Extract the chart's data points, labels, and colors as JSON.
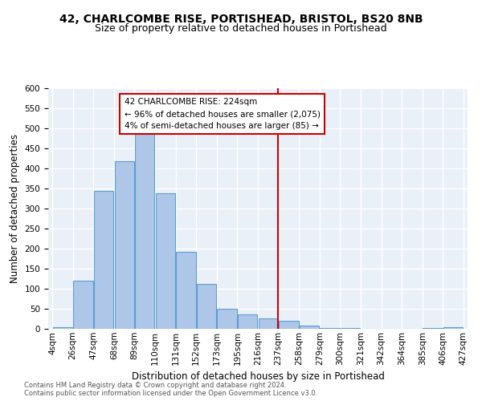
{
  "title1": "42, CHARLCOMBE RISE, PORTISHEAD, BRISTOL, BS20 8NB",
  "title2": "Size of property relative to detached houses in Portishead",
  "xlabel": "Distribution of detached houses by size in Portishead",
  "ylabel": "Number of detached properties",
  "bar_labels": [
    "4sqm",
    "26sqm",
    "47sqm",
    "68sqm",
    "89sqm",
    "110sqm",
    "131sqm",
    "152sqm",
    "173sqm",
    "195sqm",
    "216sqm",
    "237sqm",
    "258sqm",
    "279sqm",
    "300sqm",
    "321sqm",
    "342sqm",
    "364sqm",
    "385sqm",
    "406sqm",
    "427sqm"
  ],
  "bar_heights": [
    5,
    120,
    345,
    418,
    487,
    338,
    193,
    112,
    50,
    36,
    26,
    20,
    8,
    3,
    2,
    1,
    1,
    1,
    2,
    4
  ],
  "bar_color": "#aec6e8",
  "bar_edge_color": "#5a9fd4",
  "vline_color": "#cc0000",
  "annotation_line1": "42 CHARLCOMBE RISE: 224sqm",
  "annotation_line2": "← 96% of detached houses are smaller (2,075)",
  "annotation_line3": "4% of semi-detached houses are larger (85) →",
  "ylim": [
    0,
    600
  ],
  "footnote": "Contains HM Land Registry data © Crown copyright and database right 2024.\nContains public sector information licensed under the Open Government Licence v3.0.",
  "bg_color": "#eaf0f8",
  "grid_color": "#ffffff",
  "title_fontsize": 10,
  "subtitle_fontsize": 9,
  "tick_fontsize": 7.5,
  "label_fontsize": 8.5,
  "footnote_fontsize": 6.0
}
